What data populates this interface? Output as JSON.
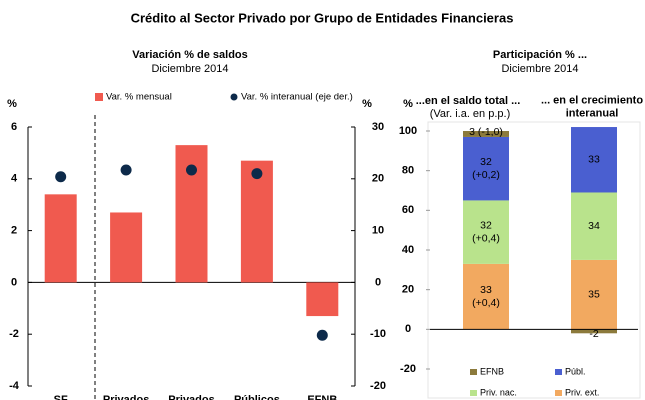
{
  "title": "Crédito al Sector Privado por Grupo de Entidades Financieras",
  "chart_data": [
    {
      "type": "bar",
      "title": "Variación % de saldos",
      "subtitle": "Diciembre 2014",
      "y_label": "%",
      "y2_label": "%",
      "categories": [
        "SF",
        "Privados",
        "Privados",
        "Públicos",
        "EFNB"
      ],
      "series": [
        {
          "name": "Var. % mensual",
          "type": "bar",
          "color": "#f05a4f",
          "values": [
            3.4,
            2.7,
            5.3,
            4.7,
            -1.3
          ]
        },
        {
          "name": "Var. % interanual (eje der.)",
          "type": "scatter",
          "axis": "y2",
          "color": "#0d2a4a",
          "values": [
            20.4,
            21.7,
            21.7,
            21,
            -10.2
          ]
        }
      ],
      "ylim": [
        -4,
        6
      ],
      "yticks": [
        -4,
        -2,
        0,
        2,
        4,
        6
      ],
      "y2lim": [
        -20,
        30
      ],
      "y2ticks": [
        -20,
        -10,
        0,
        10,
        20,
        30
      ]
    },
    {
      "type": "stacked-bar",
      "title": "Participación % ...",
      "subtitle": "Diciembre 2014",
      "y_label": "%",
      "categories": [
        "...en el saldo total ...",
        "... en el crecimiento\ninteranual"
      ],
      "category_note": "(Var. i.a. en p.p.)",
      "series": [
        {
          "name": "EFNB",
          "color": "#8c7a3c",
          "values": [
            3,
            -2
          ],
          "value_labels": [
            "3 (-1,0)",
            "-2"
          ]
        },
        {
          "name": "Públ.",
          "color": "#4a5fd0",
          "values": [
            32,
            33
          ],
          "value_labels": [
            "32\n(+0,2)",
            "33"
          ]
        },
        {
          "name": "Priv. nac.",
          "color": "#b9e38c",
          "values": [
            32,
            34
          ],
          "value_labels": [
            "32\n(+0,4)",
            "34"
          ]
        },
        {
          "name": "Priv. ext.",
          "color": "#f2a960",
          "values": [
            33,
            35
          ],
          "value_labels": [
            "33\n(+0,4)",
            "35"
          ]
        }
      ],
      "ylim": [
        -20,
        100
      ],
      "yticks": [
        -20,
        0,
        20,
        40,
        60,
        80,
        100
      ]
    }
  ]
}
